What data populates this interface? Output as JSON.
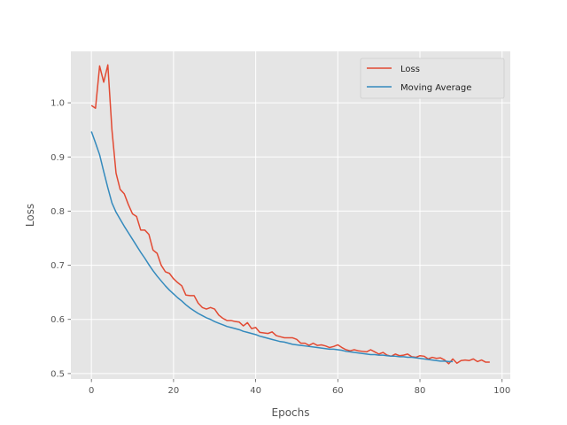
{
  "chart_data": {
    "type": "line",
    "title": "",
    "xlabel": "Epochs",
    "ylabel": "Loss",
    "xlim": [
      -5,
      102
    ],
    "ylim": [
      0.49,
      1.095
    ],
    "xticks": [
      0,
      20,
      40,
      60,
      80,
      100
    ],
    "yticks": [
      0.5,
      0.6,
      0.7,
      0.8,
      0.9,
      1.0
    ],
    "xtick_labels": [
      "0",
      "20",
      "40",
      "60",
      "80",
      "100"
    ],
    "ytick_labels": [
      "0.5",
      "0.6",
      "0.7",
      "0.8",
      "0.9",
      "1.0"
    ],
    "grid": true,
    "legend_position": "top-right",
    "series": [
      {
        "name": "Loss",
        "color": "#E24A33",
        "x": [
          0,
          1,
          2,
          3,
          4,
          5,
          6,
          7,
          8,
          9,
          10,
          11,
          12,
          13,
          14,
          15,
          16,
          17,
          18,
          19,
          20,
          21,
          22,
          23,
          24,
          25,
          26,
          27,
          28,
          29,
          30,
          31,
          32,
          33,
          34,
          35,
          36,
          37,
          38,
          39,
          40,
          41,
          42,
          43,
          44,
          45,
          46,
          47,
          48,
          49,
          50,
          51,
          52,
          53,
          54,
          55,
          56,
          57,
          58,
          59,
          60,
          61,
          62,
          63,
          64,
          65,
          66,
          67,
          68,
          69,
          70,
          71,
          72,
          73,
          74,
          75,
          76,
          77,
          78,
          79,
          80,
          81,
          82,
          83,
          84,
          85,
          86,
          87,
          88,
          89,
          90,
          91,
          92,
          93,
          94,
          95,
          96,
          97
        ],
        "y": [
          0.995,
          0.99,
          1.068,
          1.038,
          1.07,
          0.95,
          0.87,
          0.84,
          0.832,
          0.812,
          0.795,
          0.79,
          0.765,
          0.765,
          0.757,
          0.728,
          0.722,
          0.7,
          0.688,
          0.685,
          0.675,
          0.668,
          0.662,
          0.645,
          0.644,
          0.644,
          0.63,
          0.622,
          0.619,
          0.622,
          0.619,
          0.608,
          0.602,
          0.598,
          0.598,
          0.596,
          0.595,
          0.588,
          0.594,
          0.583,
          0.585,
          0.576,
          0.575,
          0.574,
          0.577,
          0.57,
          0.568,
          0.566,
          0.566,
          0.566,
          0.563,
          0.556,
          0.556,
          0.552,
          0.556,
          0.552,
          0.553,
          0.551,
          0.548,
          0.55,
          0.553,
          0.548,
          0.544,
          0.542,
          0.544,
          0.542,
          0.541,
          0.54,
          0.544,
          0.54,
          0.536,
          0.539,
          0.534,
          0.532,
          0.536,
          0.533,
          0.534,
          0.536,
          0.531,
          0.53,
          0.533,
          0.532,
          0.527,
          0.53,
          0.528,
          0.529,
          0.525,
          0.518,
          0.527,
          0.519,
          0.524,
          0.525,
          0.524,
          0.527,
          0.522,
          0.525,
          0.521,
          0.521
        ]
      },
      {
        "name": "Moving Average",
        "color": "#348ABD",
        "x": [
          0,
          1,
          2,
          3,
          4,
          5,
          6,
          7,
          8,
          9,
          10,
          11,
          12,
          13,
          14,
          15,
          16,
          17,
          18,
          19,
          20,
          21,
          22,
          23,
          24,
          25,
          26,
          27,
          28,
          29,
          30,
          31,
          32,
          33,
          34,
          35,
          36,
          37,
          38,
          39,
          40,
          41,
          42,
          43,
          44,
          45,
          46,
          47,
          48,
          49,
          50,
          51,
          52,
          53,
          54,
          55,
          56,
          57,
          58,
          59,
          60,
          61,
          62,
          63,
          64,
          65,
          66,
          67,
          68,
          69,
          70,
          71,
          72,
          73,
          74,
          75,
          76,
          77,
          78,
          79,
          80,
          81,
          82,
          83,
          84,
          85,
          86,
          87,
          88
        ],
        "y": [
          0.947,
          0.926,
          0.904,
          0.873,
          0.843,
          0.815,
          0.798,
          0.785,
          0.772,
          0.76,
          0.748,
          0.736,
          0.724,
          0.713,
          0.701,
          0.69,
          0.68,
          0.671,
          0.662,
          0.654,
          0.647,
          0.64,
          0.634,
          0.627,
          0.621,
          0.616,
          0.611,
          0.607,
          0.603,
          0.6,
          0.596,
          0.593,
          0.59,
          0.587,
          0.585,
          0.583,
          0.581,
          0.578,
          0.576,
          0.574,
          0.572,
          0.569,
          0.567,
          0.565,
          0.563,
          0.561,
          0.559,
          0.558,
          0.556,
          0.554,
          0.553,
          0.552,
          0.551,
          0.55,
          0.549,
          0.548,
          0.547,
          0.546,
          0.545,
          0.545,
          0.544,
          0.543,
          0.541,
          0.54,
          0.539,
          0.538,
          0.537,
          0.536,
          0.535,
          0.535,
          0.534,
          0.534,
          0.533,
          0.532,
          0.532,
          0.531,
          0.531,
          0.53,
          0.53,
          0.529,
          0.528,
          0.527,
          0.526,
          0.525,
          0.524,
          0.523,
          0.523,
          0.522,
          0.522
        ]
      }
    ]
  }
}
